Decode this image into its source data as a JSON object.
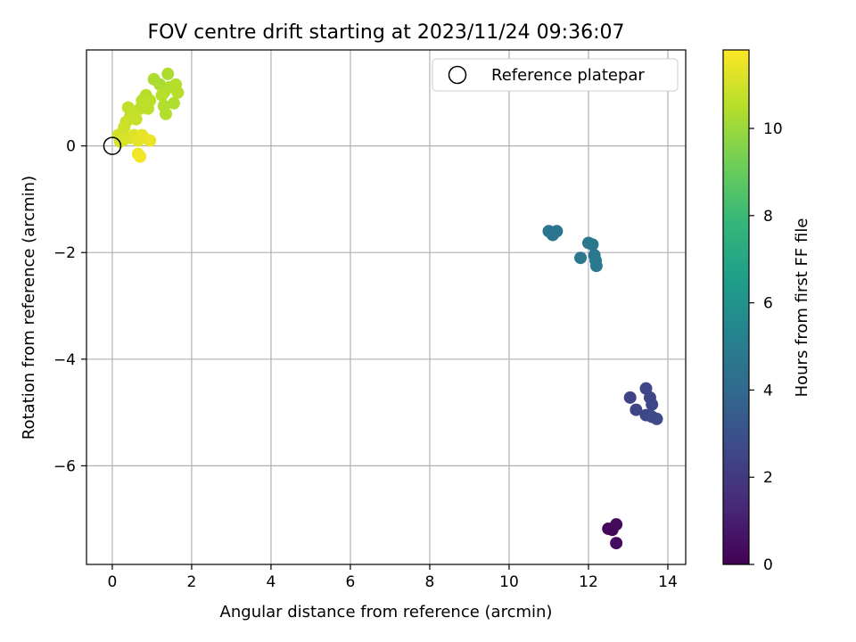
{
  "chart_data": {
    "type": "scatter",
    "title": "FOV centre drift starting at 2023/11/24 09:36:07",
    "xlabel": "Angular distance from reference (arcmin)",
    "ylabel": "Rotation from reference (arcmin)",
    "xlim": [
      -0.65,
      14.45
    ],
    "ylim": [
      -7.85,
      1.8
    ],
    "xticks": [
      0,
      2,
      4,
      6,
      8,
      10,
      12,
      14
    ],
    "yticks": [
      0,
      -2,
      -4,
      -6
    ],
    "grid": true,
    "legend": {
      "position": "top-right",
      "entries": [
        "Reference platepar"
      ]
    },
    "reference_point": {
      "x": 0,
      "y": 0,
      "label": "Reference platepar"
    },
    "colorbar": {
      "label": "Hours from first FF file",
      "range": [
        0,
        11.8
      ],
      "ticks": [
        0,
        2,
        4,
        6,
        8,
        10
      ],
      "colormap": "viridis",
      "stops": [
        "#440154",
        "#482878",
        "#3e4989",
        "#31688e",
        "#26828e",
        "#1f9e89",
        "#35b779",
        "#6ece58",
        "#b5de2b",
        "#fde725"
      ]
    },
    "points": [
      {
        "x": 12.5,
        "y": -7.18,
        "c": 0.2
      },
      {
        "x": 12.6,
        "y": -7.2,
        "c": 0.25
      },
      {
        "x": 12.7,
        "y": -7.1,
        "c": 0.3
      },
      {
        "x": 12.7,
        "y": -7.45,
        "c": 0.35
      },
      {
        "x": 13.05,
        "y": -4.72,
        "c": 2.4
      },
      {
        "x": 13.2,
        "y": -4.95,
        "c": 2.45
      },
      {
        "x": 13.45,
        "y": -4.55,
        "c": 2.5
      },
      {
        "x": 13.55,
        "y": -4.72,
        "c": 2.55
      },
      {
        "x": 13.6,
        "y": -4.85,
        "c": 2.6
      },
      {
        "x": 13.45,
        "y": -5.05,
        "c": 2.6
      },
      {
        "x": 13.6,
        "y": -5.08,
        "c": 2.65
      },
      {
        "x": 13.72,
        "y": -5.12,
        "c": 2.7
      },
      {
        "x": 11.0,
        "y": -1.6,
        "c": 4.6
      },
      {
        "x": 11.1,
        "y": -1.67,
        "c": 4.6
      },
      {
        "x": 11.2,
        "y": -1.6,
        "c": 4.65
      },
      {
        "x": 11.8,
        "y": -2.1,
        "c": 4.7
      },
      {
        "x": 12.0,
        "y": -1.82,
        "c": 4.7
      },
      {
        "x": 12.1,
        "y": -1.85,
        "c": 4.75
      },
      {
        "x": 12.15,
        "y": -2.05,
        "c": 4.75
      },
      {
        "x": 12.18,
        "y": -2.15,
        "c": 4.8
      },
      {
        "x": 12.2,
        "y": -2.25,
        "c": 4.8
      },
      {
        "x": 1.05,
        "y": 1.25,
        "c": 10.3
      },
      {
        "x": 1.2,
        "y": 1.15,
        "c": 10.3
      },
      {
        "x": 1.3,
        "y": 1.0,
        "c": 10.35
      },
      {
        "x": 1.4,
        "y": 1.35,
        "c": 10.35
      },
      {
        "x": 1.45,
        "y": 1.1,
        "c": 10.4
      },
      {
        "x": 1.55,
        "y": 0.8,
        "c": 10.4
      },
      {
        "x": 1.3,
        "y": 0.75,
        "c": 10.4
      },
      {
        "x": 1.35,
        "y": 0.6,
        "c": 10.45
      },
      {
        "x": 1.6,
        "y": 1.15,
        "c": 10.45
      },
      {
        "x": 1.65,
        "y": 1.0,
        "c": 10.5
      },
      {
        "x": 1.25,
        "y": 0.95,
        "c": 10.5
      },
      {
        "x": 0.85,
        "y": 0.95,
        "c": 10.55
      },
      {
        "x": 0.75,
        "y": 0.85,
        "c": 10.6
      },
      {
        "x": 0.95,
        "y": 0.85,
        "c": 10.6
      },
      {
        "x": 0.9,
        "y": 0.7,
        "c": 10.65
      },
      {
        "x": 0.7,
        "y": 0.7,
        "c": 10.65
      },
      {
        "x": 0.4,
        "y": 0.72,
        "c": 10.7
      },
      {
        "x": 0.45,
        "y": 0.55,
        "c": 10.7
      },
      {
        "x": 0.55,
        "y": 0.6,
        "c": 10.75
      },
      {
        "x": 0.6,
        "y": 0.5,
        "c": 10.8
      },
      {
        "x": 0.35,
        "y": 0.45,
        "c": 10.85
      },
      {
        "x": 0.3,
        "y": 0.35,
        "c": 10.9
      },
      {
        "x": 0.25,
        "y": 0.25,
        "c": 10.95
      },
      {
        "x": 0.15,
        "y": 0.2,
        "c": 11.0
      },
      {
        "x": 0.2,
        "y": 0.08,
        "c": 11.05
      },
      {
        "x": 0.3,
        "y": 0.12,
        "c": 11.1
      },
      {
        "x": 0.45,
        "y": 0.15,
        "c": 11.15
      },
      {
        "x": 0.55,
        "y": 0.2,
        "c": 11.2
      },
      {
        "x": 0.65,
        "y": 0.1,
        "c": 11.3
      },
      {
        "x": 0.75,
        "y": 0.2,
        "c": 11.35
      },
      {
        "x": 0.8,
        "y": 0.15,
        "c": 11.4
      },
      {
        "x": 0.95,
        "y": 0.1,
        "c": 11.45
      },
      {
        "x": 0.65,
        "y": -0.15,
        "c": 11.5
      },
      {
        "x": 0.7,
        "y": -0.2,
        "c": 11.6
      }
    ]
  }
}
